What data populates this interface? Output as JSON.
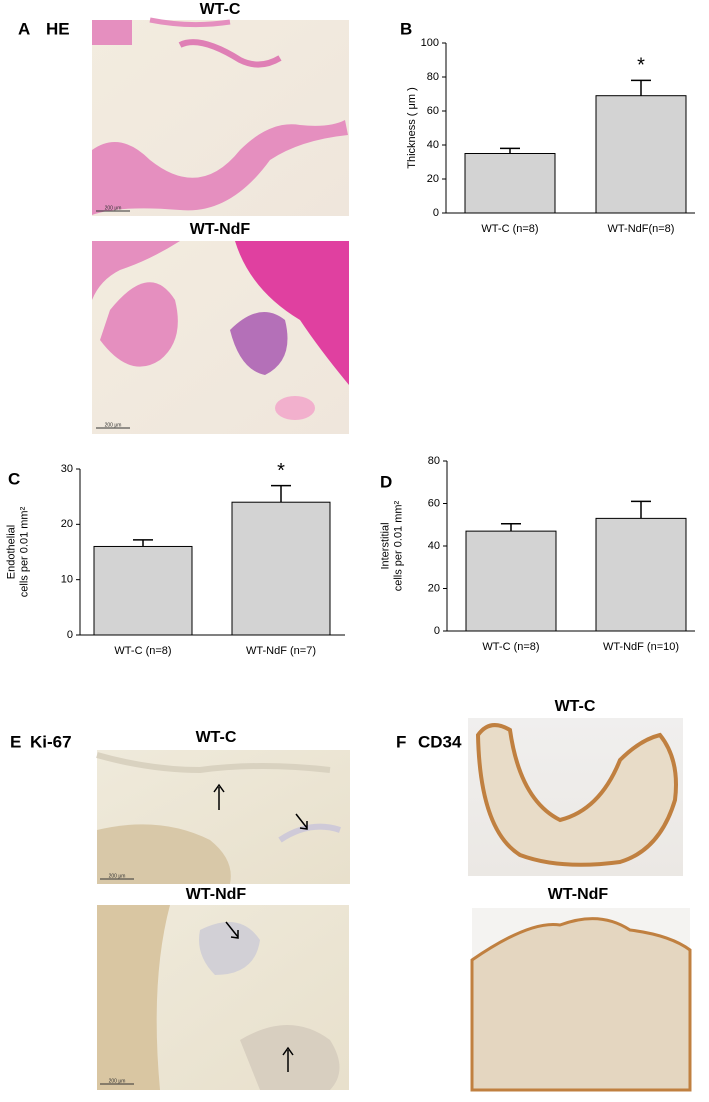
{
  "panels": {
    "A": {
      "letter": "A",
      "stain": "HE",
      "images": [
        {
          "title": "WT-C",
          "scale": "200 μm"
        },
        {
          "title": "WT-NdF",
          "scale": "200 μm"
        }
      ]
    },
    "E": {
      "letter": "E",
      "stain": "Ki-67",
      "images": [
        {
          "title": "WT-C",
          "scale": "200 μm"
        },
        {
          "title": "WT-NdF",
          "scale": "200 μm"
        }
      ]
    },
    "F": {
      "letter": "F",
      "stain": "CD34",
      "images": [
        {
          "title": "WT-C"
        },
        {
          "title": "WT-NdF"
        }
      ]
    }
  },
  "chart_data": [
    {
      "type": "bar",
      "panel": "B",
      "y_label": [
        "Thickness ( μm )"
      ],
      "categories": [
        "WT-C (n=8)",
        "WT-NdF(n=8)"
      ],
      "values": [
        35,
        69
      ],
      "errors": [
        3,
        9
      ],
      "significance": [
        null,
        "*"
      ],
      "color": "#d3d3d3",
      "ylim": [
        0,
        100
      ],
      "yticks": [
        0,
        20,
        40,
        60,
        80,
        100
      ]
    },
    {
      "type": "bar",
      "panel": "C",
      "y_label": [
        "Endothelial",
        "cells per 0.01 mm²"
      ],
      "categories": [
        "WT-C (n=8)",
        "WT-NdF (n=7)"
      ],
      "values": [
        16,
        24
      ],
      "errors": [
        1.2,
        3
      ],
      "significance": [
        null,
        "*"
      ],
      "color": "#d3d3d3",
      "ylim": [
        0,
        30
      ],
      "yticks": [
        0,
        10,
        20,
        30
      ]
    },
    {
      "type": "bar",
      "panel": "D",
      "y_label": [
        "Interstitial",
        "cells per 0.01 mm²"
      ],
      "categories": [
        "WT-C (n=8)",
        "WT-NdF (n=10)"
      ],
      "values": [
        47,
        53
      ],
      "errors": [
        3.5,
        8
      ],
      "significance": [
        null,
        null
      ],
      "color": "#d3d3d3",
      "ylim": [
        0,
        80
      ],
      "yticks": [
        0,
        20,
        40,
        60,
        80
      ]
    }
  ]
}
